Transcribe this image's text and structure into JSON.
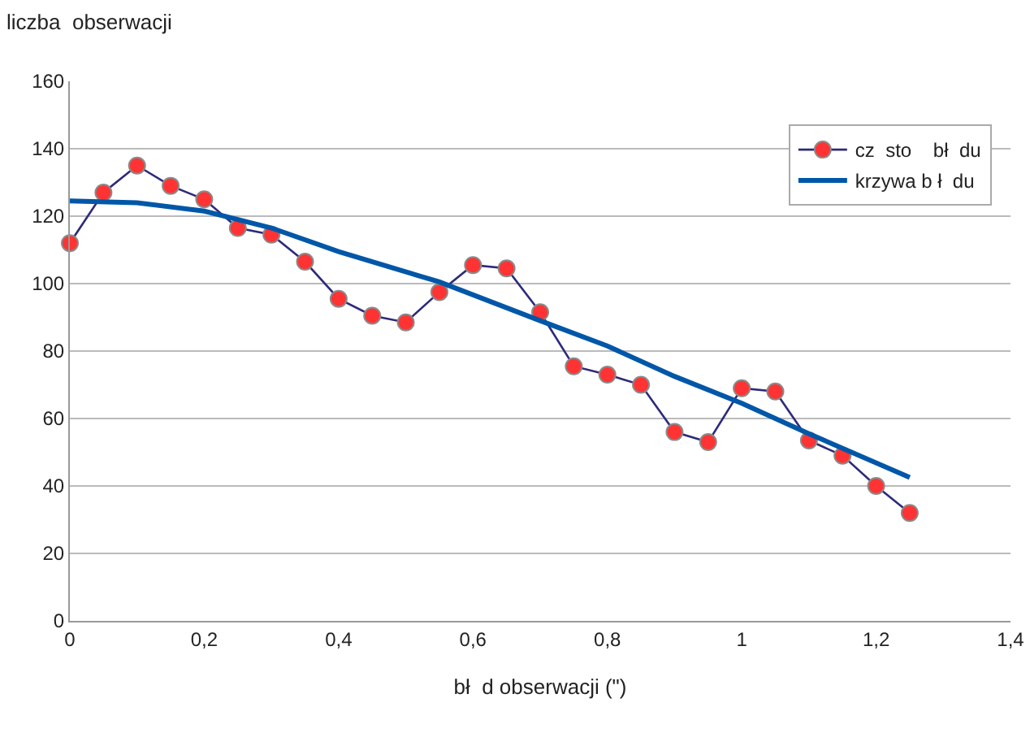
{
  "chart_data": {
    "type": "line",
    "ylabel": "liczba  obserwacji",
    "xlabel": "bł  d obserwacji (\")",
    "x": [
      0,
      0.05,
      0.1,
      0.15,
      0.2,
      0.25,
      0.3,
      0.35,
      0.4,
      0.45,
      0.5,
      0.55,
      0.6,
      0.65,
      0.7,
      0.75,
      0.8,
      0.85,
      0.9,
      0.95,
      1,
      1.05,
      1.1,
      1.15,
      1.2,
      1.25
    ],
    "series": [
      {
        "name": "cz  sto    bł  du",
        "color": "#2e2a7a",
        "marker": "circle",
        "colors": [
          "#ff3333",
          "#ff3333",
          "#ff3333",
          "#ff3333",
          "#ff3333",
          "#ff3333",
          "#ff3333",
          "#ff3333",
          "#ff3333",
          "#ff3333",
          "#ff3333",
          "#ff3333",
          "#ff3333",
          "#ff3333",
          "#ff3333",
          "#ff3333",
          "#ff3333",
          "#ff3333",
          "#ff3333",
          "#ff3333",
          "#ff3333",
          "#ff3333",
          "#ff3333",
          "#ff3333",
          "#ff3333",
          "#ff3333"
        ],
        "values": [
          112,
          127,
          135,
          129,
          125,
          116.5,
          114.5,
          106.5,
          95.5,
          90.5,
          88.5,
          97.5,
          105.5,
          104.5,
          91.5,
          75.5,
          73,
          70,
          56,
          53,
          69,
          68,
          53.5,
          49,
          40,
          32
        ]
      },
      {
        "name": "krzywa b ł  du",
        "color": "#0057a8",
        "marker": "none",
        "x": [
          0,
          0.1,
          0.2,
          0.3,
          0.4,
          0.55,
          0.7,
          0.8,
          0.9,
          1,
          1.1,
          1.25
        ],
        "values": [
          124.5,
          124,
          121.5,
          116.5,
          109.5,
          100.5,
          89,
          81.5,
          72.5,
          64.5,
          55.5,
          42.5
        ]
      }
    ],
    "xlim": [
      0,
      1.4
    ],
    "xticks": [
      0,
      {
        "value": 0.2,
        "label": "0,2"
      },
      {
        "value": 0.4,
        "label": "0,4"
      },
      {
        "value": 0.6,
        "label": "0,6"
      },
      {
        "value": 0.8,
        "label": "0,8"
      },
      1,
      {
        "value": 1.2,
        "label": "1,2"
      },
      {
        "value": 1.4,
        "label": "1,4"
      }
    ],
    "ylim": [
      0,
      160
    ],
    "yticks": [
      0,
      20,
      40,
      60,
      80,
      100,
      120,
      140,
      160
    ],
    "grid": "y",
    "legend": "top right",
    "line_style": "solid"
  }
}
